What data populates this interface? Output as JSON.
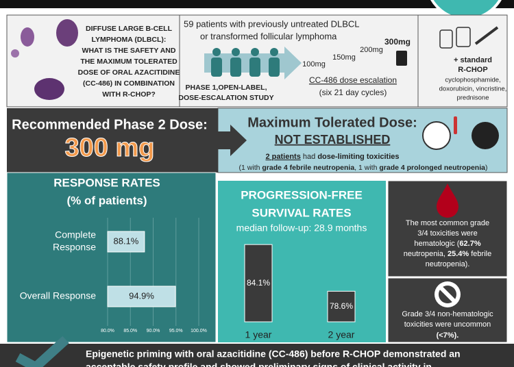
{
  "question": [
    "DIFFUSE LARGE B-CELL",
    "LYMPHOMA (DLBCL):",
    "WHAT IS THE SAFETY AND",
    "THE MAXIMUM TOLERATED",
    "DOSE OF ORAL AZACITIDINE",
    "(CC-486) IN COMBINATION",
    "WITH R-CHOP?"
  ],
  "population": [
    "59 patients with previously untreated DLBCL",
    "or transformed follicular lymphoma"
  ],
  "study": [
    "PHASE 1,OPEN-LABEL,",
    "DOSE-ESCALATION STUDY"
  ],
  "doses": [
    "100mg",
    "150mg",
    "200mg",
    "300mg"
  ],
  "escalation": [
    "CC-486 dose escalation",
    "(six 21 day cycles)"
  ],
  "rchop": {
    "title": [
      "+ standard",
      "R-CHOP"
    ],
    "drugs": [
      "cyclophosphamide,",
      "doxorubicin, vincristine,",
      "prednisone"
    ]
  },
  "rp2d": {
    "label": "Recommended Phase 2 Dose:",
    "value": "300 mg"
  },
  "mtd": {
    "title": "Maximum Tolerated Dose:",
    "value": "NOT ESTABLISHED",
    "note1": [
      "2 patients",
      " had ",
      "dose-limiting toxicities"
    ],
    "note2": [
      "(1 with ",
      "grade 4 febrile neutropenia",
      ", 1 with ",
      "grade 4 prolonged neutropenia",
      ")"
    ]
  },
  "response": {
    "type": "bar",
    "title": "RESPONSE RATES",
    "subtitle": "(% of patients)",
    "categories": [
      [
        "Complete",
        "Response"
      ],
      [
        "Overall Response"
      ]
    ],
    "values": [
      88.1,
      94.9
    ],
    "value_labels": [
      "88.1%",
      "94.9%"
    ],
    "color": "#bfe0e6",
    "xlim": [
      80,
      100
    ],
    "xticks": [
      {
        "value": 80,
        "label": "80.0%"
      },
      {
        "value": 85,
        "label": "85.0%"
      },
      {
        "value": 90,
        "label": "90.0%"
      },
      {
        "value": 95,
        "label": "95.0%"
      },
      {
        "value": 100,
        "label": "100.0%"
      }
    ],
    "grid": true
  },
  "pfs": {
    "type": "bar",
    "title": [
      "PROGRESSION-FREE",
      "SURVIVAL RATES"
    ],
    "subtitle": "median follow-up: 28.9 months",
    "categories": [
      "1 year",
      "2 year"
    ],
    "values": [
      84.1,
      78.6
    ],
    "value_labels": [
      "84.1%",
      "78.6%"
    ],
    "color": "#3a3a3a",
    "ylim": [
      75,
      85
    ]
  },
  "toxicity": {
    "l1": "The most common grade",
    "l2": "3/4 toxicities were",
    "l3": [
      "hematologic (",
      "62.7%"
    ],
    "l4": [
      "neutropenia, ",
      "25.4%",
      " febrile"
    ],
    "l5": "neutropenia)."
  },
  "nonheme": [
    "Grade 3/4 non-hematologic",
    "toxicities were uncommon",
    "(<7%)."
  ],
  "conclusion": [
    "Epigenetic priming with oral azacitidine (CC-486) before R-CHOP demonstrated an",
    "acceptable safety profile and showed preliminary signs of clinical activity in"
  ]
}
